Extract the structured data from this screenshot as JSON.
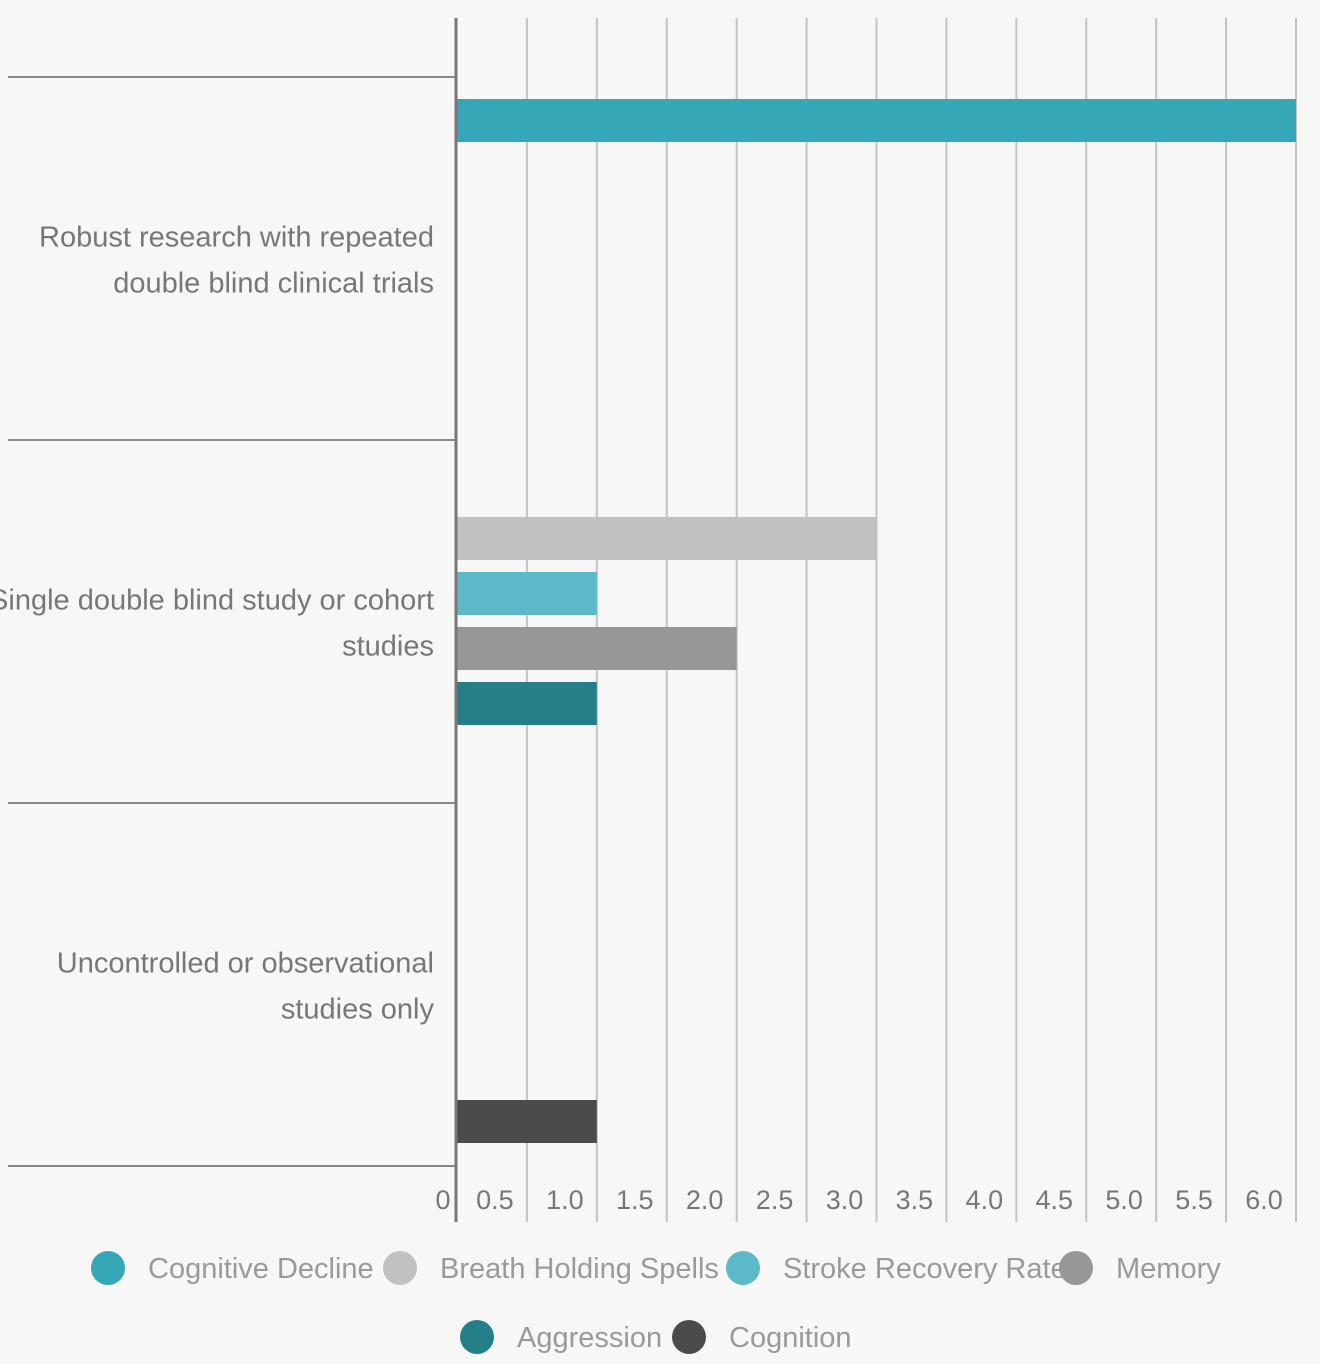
{
  "chart_data": {
    "type": "bar",
    "orientation": "horizontal",
    "title": "",
    "xlabel": "",
    "ylabel": "",
    "xlim": [
      0,
      6.0
    ],
    "x_ticks": [
      "0",
      "0.5",
      "1.0",
      "1.5",
      "2.0",
      "2.5",
      "3.0",
      "3.5",
      "4.0",
      "4.5",
      "5.0",
      "5.5",
      "6.0"
    ],
    "categories": [
      [
        "Robust research with repeated",
        "double blind clinical trials"
      ],
      [
        "Single double blind study or cohort",
        "studies"
      ],
      [
        "Uncontrolled or observational",
        "studies only"
      ]
    ],
    "series": [
      {
        "name": "Cognitive Decline",
        "color": "#35a7b6",
        "values": [
          6.0,
          0,
          0
        ]
      },
      {
        "name": "Breath Holding Spells",
        "color": "#c1c1c1",
        "values": [
          0,
          3.0,
          0
        ]
      },
      {
        "name": "Stroke Recovery Rate",
        "color": "#5cb9c7",
        "values": [
          0,
          1.0,
          0
        ]
      },
      {
        "name": "Memory",
        "color": "#979797",
        "values": [
          0,
          2.0,
          0
        ]
      },
      {
        "name": "Aggression",
        "color": "#257f88",
        "values": [
          0,
          1.0,
          0
        ]
      },
      {
        "name": "Cognition",
        "color": "#4b4b4b",
        "values": [
          0,
          0,
          1.0
        ]
      }
    ],
    "grid": true,
    "legend_position": "bottom"
  }
}
